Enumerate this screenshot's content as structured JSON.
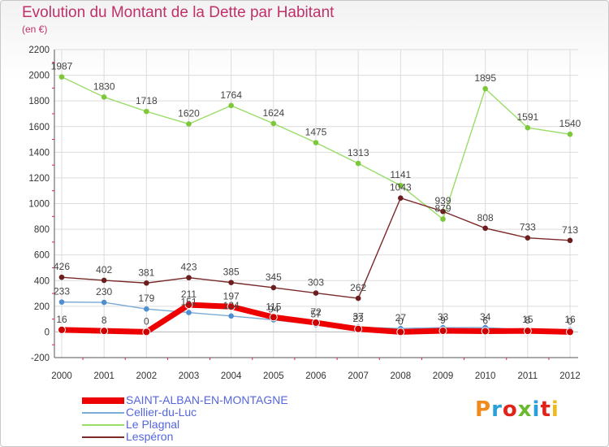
{
  "header": {
    "title": "Evolution du Montant de la Dette par Habitant",
    "subtitle": "(en €)"
  },
  "brand": {
    "logo_text": "Proxiti",
    "letter_colors": [
      "#f08a1c",
      "#2a9fd8",
      "#e2231a",
      "#6ab92f",
      "#2a9fd8",
      "#e2231a",
      "#f0b81c"
    ]
  },
  "chart_data": {
    "type": "line",
    "x": [
      "2000",
      "2001",
      "2002",
      "2003",
      "2004",
      "2005",
      "2006",
      "2007",
      "2008",
      "2009",
      "2010",
      "2011",
      "2012"
    ],
    "ylim": [
      -200,
      2200
    ],
    "yticks": [
      -200,
      0,
      200,
      400,
      600,
      800,
      1000,
      1200,
      1400,
      1600,
      1800,
      2000,
      2200
    ],
    "grid": true,
    "legend_position": "bottom-left",
    "series": [
      {
        "name": "Le Plagnal",
        "color": "#99dd66",
        "marker": "#7cc83a",
        "width": 1.4,
        "values": [
          1987,
          1830,
          1718,
          1620,
          1764,
          1624,
          1475,
          1313,
          1141,
          879,
          1895,
          1591,
          1540
        ],
        "labels": [
          "1987",
          "1830",
          "1718",
          "1620",
          "1764",
          "1624",
          "1475",
          "1313",
          "1141",
          "879",
          "1895",
          "1591",
          "1540"
        ]
      },
      {
        "name": "Lespéron",
        "color": "#7b2a2a",
        "marker": "#6a1e1e",
        "width": 1.4,
        "values": [
          426,
          402,
          381,
          423,
          385,
          345,
          303,
          262,
          1043,
          939,
          808,
          733,
          713
        ],
        "labels": [
          "426",
          "402",
          "381",
          "423",
          "385",
          "345",
          "303",
          "262",
          "1043",
          "939",
          "808",
          "733",
          "713"
        ]
      },
      {
        "name": "Cellier-du-Luc",
        "color": "#7aaad6",
        "marker": "#4f8fd0",
        "width": 1.4,
        "values": [
          233,
          230,
          179,
          151,
          124,
          94,
          57,
          37,
          27,
          33,
          34,
          15,
          16
        ],
        "labels": [
          "233",
          "230",
          "179",
          "151",
          "124",
          "94",
          "57",
          "37",
          "27",
          "33",
          "34",
          "15",
          "16"
        ]
      },
      {
        "name": "SAINT-ALBAN-EN-MONTAGNE",
        "color": "#ee0000",
        "marker": "#cc0000",
        "width": 7,
        "values": [
          16,
          8,
          0,
          211,
          197,
          115,
          72,
          23,
          0,
          9,
          6,
          8,
          0
        ],
        "labels": [
          "16",
          "8",
          "0",
          "211",
          "197",
          "115",
          "72",
          "23",
          "0",
          "9",
          "6",
          "8",
          "0"
        ]
      }
    ],
    "legend_order": [
      "SAINT-ALBAN-EN-MONTAGNE",
      "Cellier-du-Luc",
      "Le Plagnal",
      "Lespéron"
    ],
    "legend_colors": {
      "SAINT-ALBAN-EN-MONTAGNE": "#5566dd",
      "Cellier-du-Luc": "#5566dd",
      "Le Plagnal": "#5566dd",
      "Lespéron": "#5566dd"
    }
  }
}
